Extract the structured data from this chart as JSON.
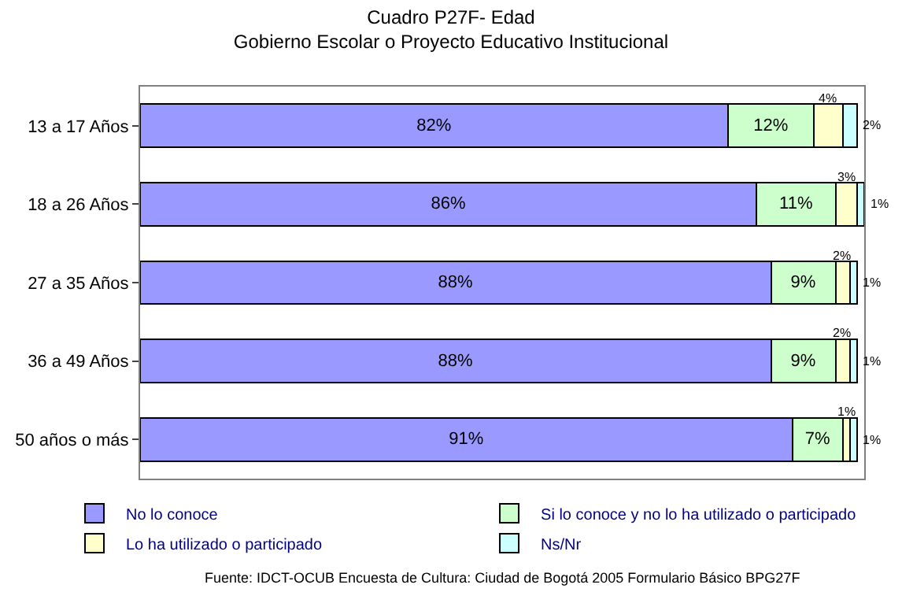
{
  "chart_data": {
    "type": "bar",
    "orientation": "horizontal",
    "stacked": true,
    "title": "Cuadro P27F- Edad",
    "subtitle": "Gobierno Escolar o Proyecto Educativo Institucional",
    "categories": [
      "13 a 17 Años",
      "18 a 26 Años",
      "27 a 35 Años",
      "36 a 49 Años",
      "50 años o más"
    ],
    "series": [
      {
        "name": "No lo conoce",
        "color": "#9999ff",
        "values": [
          82,
          86,
          88,
          88,
          91
        ],
        "value_labels": [
          "82%",
          "86%",
          "88%",
          "88%",
          "91%"
        ]
      },
      {
        "name": "Si lo conoce y no lo ha utilizado o participado",
        "color": "#ccffcc",
        "values": [
          12,
          11,
          9,
          9,
          7
        ],
        "value_labels": [
          "12%",
          "11%",
          "9%",
          "9%",
          "7%"
        ]
      },
      {
        "name": "Lo ha utilizado o participado",
        "color": "#ffffcc",
        "values": [
          4,
          3,
          2,
          2,
          1
        ],
        "value_labels": [
          "4%",
          "3%",
          "2%",
          "2%",
          "1%"
        ]
      },
      {
        "name": "Ns/Nr",
        "color": "#ccffff",
        "values": [
          2,
          1,
          1,
          1,
          1
        ],
        "value_labels": [
          "2%",
          "1%",
          "1%",
          "1%",
          "1%"
        ]
      }
    ],
    "tick_labels": "y",
    "legend": "bottom",
    "annotations": [
      "Fuente: IDCT-OCUB Encuesta de Cultura: Ciudad de Bogotá 2005 Formulario Básico BPG27F"
    ]
  }
}
